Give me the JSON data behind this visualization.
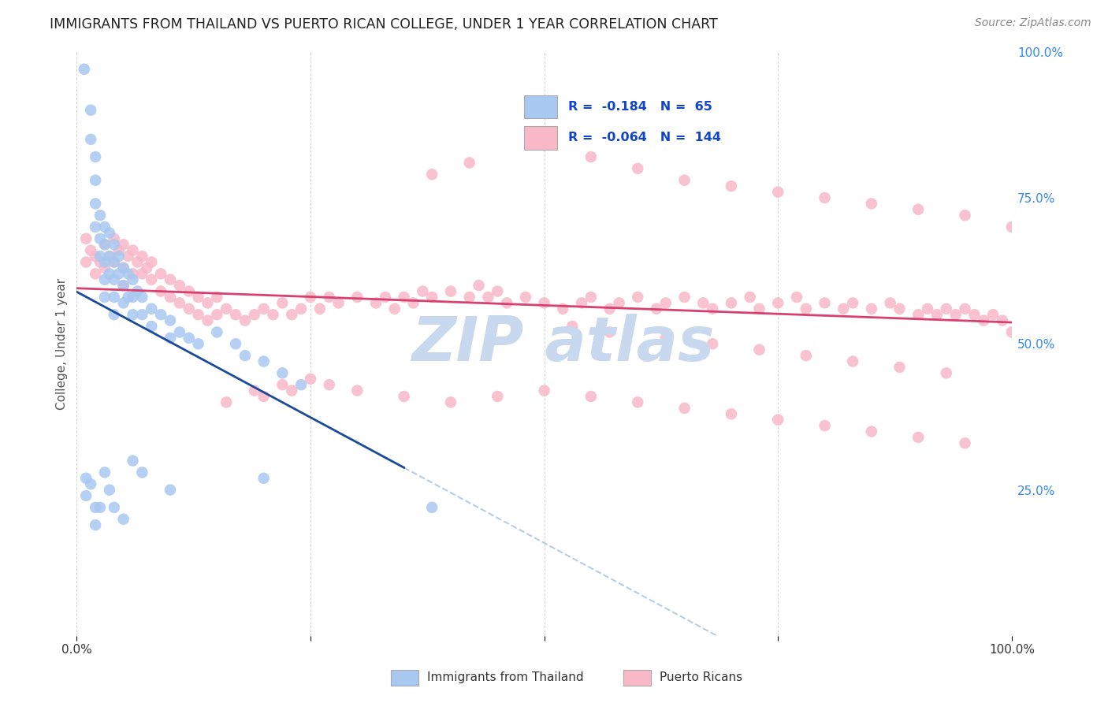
{
  "title": "IMMIGRANTS FROM THAILAND VS PUERTO RICAN COLLEGE, UNDER 1 YEAR CORRELATION CHART",
  "source": "Source: ZipAtlas.com",
  "ylabel": "College, Under 1 year",
  "xmin": 0.0,
  "xmax": 1.0,
  "ymin": 0.0,
  "ymax": 1.0,
  "yticks": [
    0.0,
    0.25,
    0.5,
    0.75,
    1.0
  ],
  "ytick_labels": [
    "",
    "25.0%",
    "50.0%",
    "75.0%",
    "100.0%"
  ],
  "xticks": [
    0.0,
    0.25,
    0.5,
    0.75,
    1.0
  ],
  "xtick_labels_show": [
    "0.0%",
    "100.0%"
  ],
  "legend_blue_r": "-0.184",
  "legend_blue_n": "65",
  "legend_pink_r": "-0.064",
  "legend_pink_n": "144",
  "blue_color": "#a8c8f0",
  "pink_color": "#f8b8c8",
  "blue_line_color": "#1a4a9a",
  "pink_line_color": "#d84070",
  "dashed_line_color": "#b0c8e0",
  "watermark_color": "#c8d8ee",
  "title_color": "#222222",
  "right_axis_color": "#3388ee",
  "grid_color": "#cccccc",
  "background_color": "#ffffff",
  "blue_x": [
    0.008,
    0.015,
    0.015,
    0.02,
    0.02,
    0.02,
    0.02,
    0.025,
    0.025,
    0.025,
    0.03,
    0.03,
    0.03,
    0.03,
    0.03,
    0.035,
    0.035,
    0.035,
    0.04,
    0.04,
    0.04,
    0.04,
    0.04,
    0.045,
    0.045,
    0.05,
    0.05,
    0.05,
    0.055,
    0.055,
    0.06,
    0.06,
    0.06,
    0.065,
    0.07,
    0.07,
    0.08,
    0.08,
    0.09,
    0.1,
    0.1,
    0.11,
    0.12,
    0.13,
    0.15,
    0.17,
    0.18,
    0.2,
    0.22,
    0.24,
    0.01,
    0.01,
    0.015,
    0.02,
    0.02,
    0.025,
    0.03,
    0.035,
    0.04,
    0.05,
    0.06,
    0.07,
    0.1,
    0.2,
    0.38
  ],
  "blue_y": [
    0.97,
    0.9,
    0.85,
    0.82,
    0.78,
    0.74,
    0.7,
    0.72,
    0.68,
    0.65,
    0.7,
    0.67,
    0.64,
    0.61,
    0.58,
    0.69,
    0.65,
    0.62,
    0.67,
    0.64,
    0.61,
    0.58,
    0.55,
    0.65,
    0.62,
    0.63,
    0.6,
    0.57,
    0.62,
    0.58,
    0.61,
    0.58,
    0.55,
    0.59,
    0.58,
    0.55,
    0.56,
    0.53,
    0.55,
    0.54,
    0.51,
    0.52,
    0.51,
    0.5,
    0.52,
    0.5,
    0.48,
    0.47,
    0.45,
    0.43,
    0.27,
    0.24,
    0.26,
    0.22,
    0.19,
    0.22,
    0.28,
    0.25,
    0.22,
    0.2,
    0.3,
    0.28,
    0.25,
    0.27,
    0.22
  ],
  "pink_x": [
    0.01,
    0.01,
    0.015,
    0.02,
    0.02,
    0.025,
    0.03,
    0.03,
    0.035,
    0.04,
    0.04,
    0.045,
    0.05,
    0.05,
    0.05,
    0.055,
    0.06,
    0.06,
    0.065,
    0.07,
    0.07,
    0.075,
    0.08,
    0.08,
    0.09,
    0.09,
    0.1,
    0.1,
    0.11,
    0.11,
    0.12,
    0.12,
    0.13,
    0.13,
    0.14,
    0.14,
    0.15,
    0.15,
    0.16,
    0.17,
    0.18,
    0.19,
    0.2,
    0.21,
    0.22,
    0.23,
    0.24,
    0.25,
    0.26,
    0.27,
    0.28,
    0.3,
    0.32,
    0.33,
    0.34,
    0.35,
    0.36,
    0.37,
    0.38,
    0.4,
    0.42,
    0.43,
    0.44,
    0.45,
    0.46,
    0.48,
    0.5,
    0.52,
    0.54,
    0.55,
    0.57,
    0.58,
    0.6,
    0.62,
    0.63,
    0.65,
    0.67,
    0.68,
    0.7,
    0.72,
    0.73,
    0.75,
    0.77,
    0.78,
    0.8,
    0.82,
    0.83,
    0.85,
    0.87,
    0.88,
    0.9,
    0.91,
    0.92,
    0.93,
    0.94,
    0.95,
    0.96,
    0.97,
    0.98,
    0.99,
    1.0,
    0.38,
    0.42,
    0.5,
    0.55,
    0.6,
    0.65,
    0.7,
    0.75,
    0.8,
    0.85,
    0.9,
    0.95,
    1.0,
    0.25,
    0.22,
    0.19,
    0.16,
    0.2,
    0.23,
    0.27,
    0.3,
    0.35,
    0.4,
    0.45,
    0.5,
    0.55,
    0.6,
    0.65,
    0.7,
    0.75,
    0.8,
    0.85,
    0.9,
    0.95,
    0.53,
    0.57,
    0.63,
    0.68,
    0.73,
    0.78,
    0.83,
    0.88,
    0.93
  ],
  "pink_y": [
    0.68,
    0.64,
    0.66,
    0.65,
    0.62,
    0.64,
    0.67,
    0.63,
    0.65,
    0.68,
    0.64,
    0.66,
    0.67,
    0.63,
    0.6,
    0.65,
    0.66,
    0.62,
    0.64,
    0.65,
    0.62,
    0.63,
    0.64,
    0.61,
    0.62,
    0.59,
    0.61,
    0.58,
    0.6,
    0.57,
    0.59,
    0.56,
    0.58,
    0.55,
    0.57,
    0.54,
    0.58,
    0.55,
    0.56,
    0.55,
    0.54,
    0.55,
    0.56,
    0.55,
    0.57,
    0.55,
    0.56,
    0.58,
    0.56,
    0.58,
    0.57,
    0.58,
    0.57,
    0.58,
    0.56,
    0.58,
    0.57,
    0.59,
    0.58,
    0.59,
    0.58,
    0.6,
    0.58,
    0.59,
    0.57,
    0.58,
    0.57,
    0.56,
    0.57,
    0.58,
    0.56,
    0.57,
    0.58,
    0.56,
    0.57,
    0.58,
    0.57,
    0.56,
    0.57,
    0.58,
    0.56,
    0.57,
    0.58,
    0.56,
    0.57,
    0.56,
    0.57,
    0.56,
    0.57,
    0.56,
    0.55,
    0.56,
    0.55,
    0.56,
    0.55,
    0.56,
    0.55,
    0.54,
    0.55,
    0.54,
    0.52,
    0.79,
    0.81,
    0.84,
    0.82,
    0.8,
    0.78,
    0.77,
    0.76,
    0.75,
    0.74,
    0.73,
    0.72,
    0.7,
    0.44,
    0.43,
    0.42,
    0.4,
    0.41,
    0.42,
    0.43,
    0.42,
    0.41,
    0.4,
    0.41,
    0.42,
    0.41,
    0.4,
    0.39,
    0.38,
    0.37,
    0.36,
    0.35,
    0.34,
    0.33,
    0.53,
    0.52,
    0.51,
    0.5,
    0.49,
    0.48,
    0.47,
    0.46,
    0.45
  ]
}
